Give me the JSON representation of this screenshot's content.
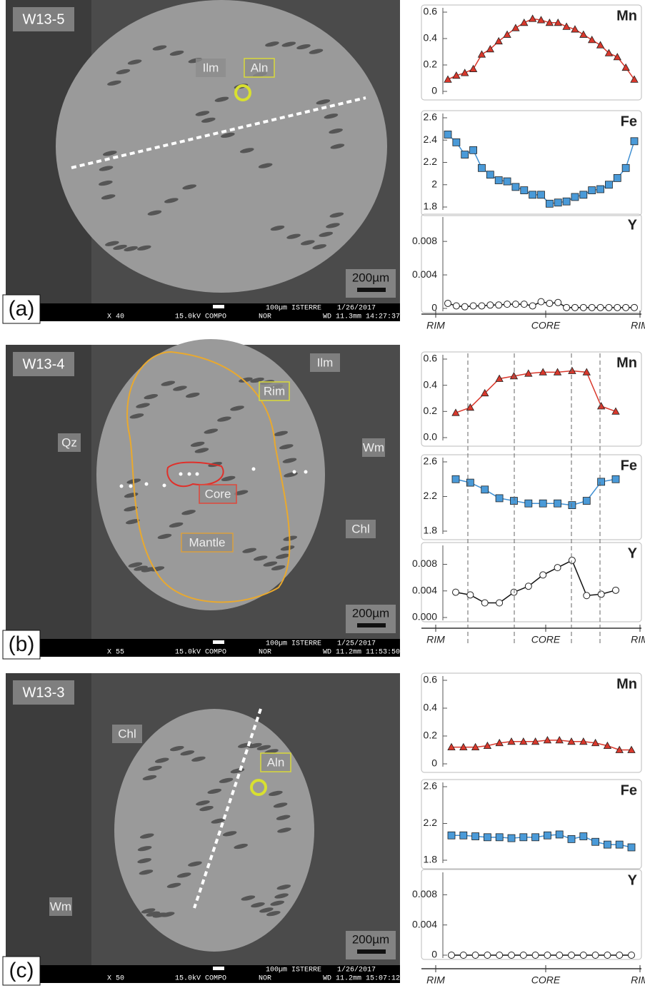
{
  "panels": [
    {
      "title": "W13-5",
      "label": "(a)",
      "scale_bar": "200µm",
      "annotations": [
        "Ilm",
        "Aln"
      ],
      "info": [
        "100µm ISTERRE",
        "1/26/2017",
        "X 40",
        "15.0kV COMPO",
        "NOR",
        "WD 11.3mm 14:27:37"
      ]
    },
    {
      "title": "W13-4",
      "label": "(b)",
      "scale_bar": "200µm",
      "annotations": [
        "Ilm",
        "Rim",
        "Qz",
        "Wm",
        "Core",
        "Chl",
        "Mantle"
      ],
      "info": [
        "100µm ISTERRE",
        "1/25/2017",
        "X 55",
        "15.0kV COMPO",
        "NOR",
        "WD 11.2mm 11:53:50"
      ]
    },
    {
      "title": "W13-3",
      "label": "(c)",
      "scale_bar": "200µm",
      "annotations": [
        "Chl",
        "Aln",
        "Wm"
      ],
      "info": [
        "100µm ISTERRE",
        "1/26/2017",
        "X 50",
        "15.0kV COMPO",
        "NOR",
        "WD 11.2mm 15:07:12"
      ]
    }
  ],
  "chart_data": [
    {
      "type": "line",
      "title": "Mn",
      "marker": "triangle",
      "color": "#d9382c",
      "fill": "#d9382c",
      "categories": [
        null,
        null,
        null,
        null,
        null,
        null,
        null,
        null,
        null,
        null,
        null,
        null,
        null,
        null,
        null,
        null,
        null,
        null,
        null,
        null,
        null,
        null,
        null
      ],
      "values": [
        0.09,
        0.12,
        0.14,
        0.17,
        0.28,
        0.32,
        0.38,
        0.43,
        0.48,
        0.52,
        0.55,
        0.54,
        0.52,
        0.52,
        0.49,
        0.47,
        0.43,
        0.39,
        0.35,
        0.29,
        0.26,
        0.18,
        0.09
      ],
      "ylim": [
        0,
        0.6
      ],
      "yticks": [
        0,
        0.2,
        0.4,
        0.6
      ]
    },
    {
      "type": "line",
      "title": "Fe",
      "marker": "square",
      "color": "#3f8fd2",
      "fill": "#4a9ad8",
      "categories": [
        null,
        null,
        null,
        null,
        null,
        null,
        null,
        null,
        null,
        null,
        null,
        null,
        null,
        null,
        null,
        null,
        null,
        null,
        null,
        null,
        null,
        null,
        null
      ],
      "values": [
        2.45,
        2.38,
        2.27,
        2.31,
        2.15,
        2.09,
        2.04,
        2.03,
        1.98,
        1.95,
        1.91,
        1.91,
        1.83,
        1.84,
        1.85,
        1.89,
        1.91,
        1.95,
        1.96,
        2.0,
        2.06,
        2.15,
        2.39
      ],
      "ylim": [
        1.8,
        2.6
      ],
      "yticks": [
        1.8,
        2,
        2.2,
        2.4,
        2.6
      ]
    },
    {
      "type": "line",
      "title": "Y",
      "marker": "circle",
      "color": "#111",
      "fill": "#fff",
      "categories": [
        null,
        null,
        null,
        null,
        null,
        null,
        null,
        null,
        null,
        null,
        null,
        null,
        null,
        null,
        null,
        null,
        null,
        null,
        null,
        null,
        null,
        null,
        null
      ],
      "values": [
        0.0006,
        0.0003,
        0.0002,
        0.0003,
        0.0003,
        0.0004,
        0.0004,
        0.0005,
        0.0005,
        0.0005,
        0.0003,
        0.0008,
        0.0006,
        0.0007,
        0.0001,
        0.0001,
        0.0001,
        0.0001,
        0.0001,
        0.0001,
        0.0001,
        0.0001,
        0.0001
      ],
      "ylim": [
        0,
        0.0104
      ],
      "yticks": [
        0,
        0.004,
        0.008
      ],
      "x_axis_labels": [
        "RIM",
        "CORE",
        "RIM"
      ]
    },
    {
      "type": "line",
      "title": "Mn",
      "marker": "triangle",
      "color": "#d9382c",
      "fill": "#d9382c",
      "categories": [
        null,
        null,
        null,
        null,
        null,
        null,
        null,
        null,
        null,
        null,
        null,
        null
      ],
      "values": [
        0.19,
        0.23,
        0.34,
        0.45,
        0.47,
        0.49,
        0.5,
        0.5,
        0.51,
        0.5,
        0.24,
        0.2
      ],
      "ylim": [
        0,
        0.6
      ],
      "yticks": [
        {
          "value": 0,
          "label": "0.0"
        },
        0.2,
        0.4,
        0.6
      ]
    },
    {
      "type": "line",
      "title": "Fe",
      "marker": "square",
      "color": "#3f8fd2",
      "fill": "#4a9ad8",
      "categories": [
        null,
        null,
        null,
        null,
        null,
        null,
        null,
        null,
        null,
        null,
        null,
        null
      ],
      "values": [
        2.4,
        2.36,
        2.28,
        2.18,
        2.15,
        2.12,
        2.12,
        2.12,
        2.1,
        2.15,
        2.37,
        2.4
      ],
      "ylim": [
        1.8,
        2.6
      ],
      "yticks": [
        1.8,
        2.2,
        2.6
      ]
    },
    {
      "type": "line",
      "title": "Y",
      "marker": "circle",
      "color": "#111",
      "fill": "#fff",
      "categories": [
        null,
        null,
        null,
        null,
        null,
        null,
        null,
        null,
        null,
        null,
        null,
        null
      ],
      "values": [
        0.0038,
        0.0034,
        0.0022,
        0.0022,
        0.0038,
        0.0047,
        0.0064,
        0.0075,
        0.0086,
        0.0033,
        0.0035,
        0.0041
      ],
      "ylim": [
        0,
        0.0102
      ],
      "yticks": [
        {
          "value": 0,
          "label": "0.000"
        },
        0.004,
        0.008
      ],
      "x_axis_labels": [
        "RIM",
        "CORE",
        "RIM"
      ]
    },
    {
      "type": "line",
      "title": "Mn",
      "marker": "triangle",
      "color": "#d9382c",
      "fill": "#d9382c",
      "categories": [
        null,
        null,
        null,
        null,
        null,
        null,
        null,
        null,
        null,
        null,
        null,
        null,
        null,
        null,
        null,
        null
      ],
      "values": [
        0.12,
        0.12,
        0.12,
        0.13,
        0.15,
        0.16,
        0.16,
        0.16,
        0.17,
        0.17,
        0.16,
        0.16,
        0.15,
        0.13,
        0.1,
        0.1
      ],
      "ylim": [
        0,
        0.6
      ],
      "yticks": [
        0,
        0.2,
        0.4,
        0.6
      ]
    },
    {
      "type": "line",
      "title": "Fe",
      "marker": "square",
      "color": "#3f8fd2",
      "fill": "#4a9ad8",
      "categories": [
        null,
        null,
        null,
        null,
        null,
        null,
        null,
        null,
        null,
        null,
        null,
        null,
        null,
        null,
        null,
        null
      ],
      "values": [
        2.07,
        2.07,
        2.06,
        2.05,
        2.05,
        2.04,
        2.05,
        2.05,
        2.07,
        2.08,
        2.03,
        2.06,
        2.0,
        1.97,
        1.97,
        1.94
      ],
      "ylim": [
        1.8,
        2.6
      ],
      "yticks": [
        1.8,
        2.2,
        2.6
      ]
    },
    {
      "type": "line",
      "title": "Y",
      "marker": "circle",
      "color": "#111",
      "fill": "#fff",
      "categories": [
        null,
        null,
        null,
        null,
        null,
        null,
        null,
        null,
        null,
        null,
        null,
        null,
        null,
        null,
        null,
        null
      ],
      "values": [
        0,
        0,
        0,
        0,
        0,
        0,
        0,
        0,
        0,
        0,
        0,
        0,
        0,
        0,
        0,
        0
      ],
      "ylim": [
        0,
        0.0104
      ],
      "yticks": [
        0,
        0.004,
        0.008
      ],
      "x_axis_labels": [
        "RIM",
        "CORE",
        "RIM"
      ]
    }
  ]
}
